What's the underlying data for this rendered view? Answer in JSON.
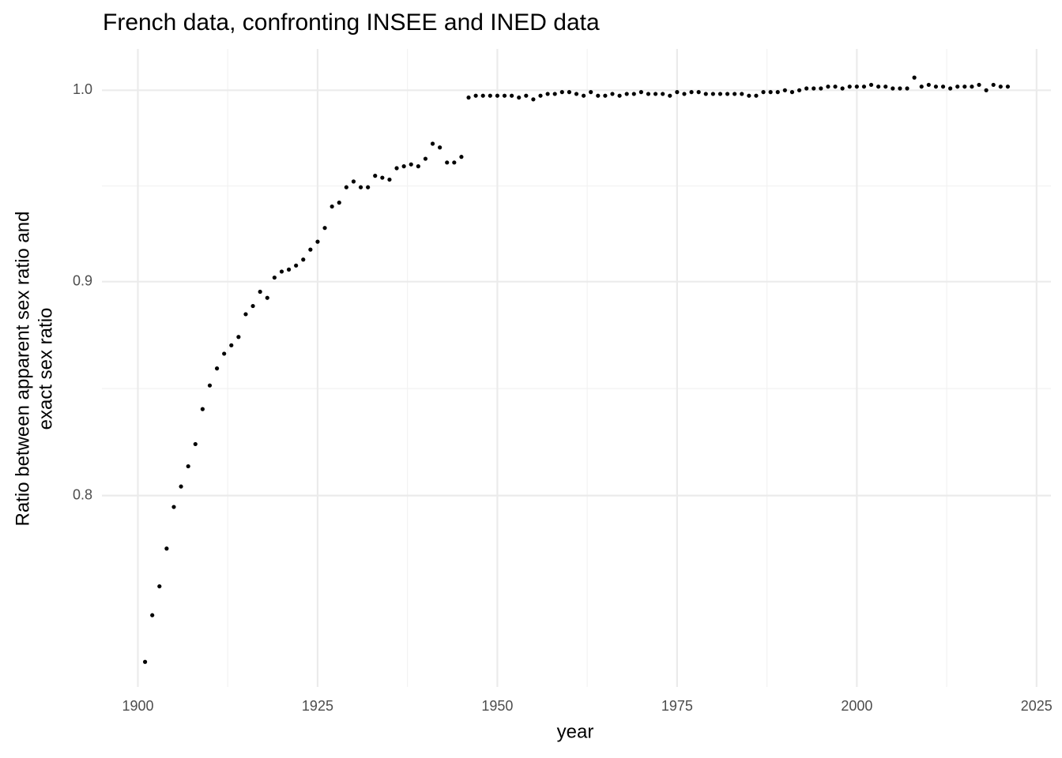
{
  "chart_data": {
    "type": "scatter",
    "title": "French data, confronting INSEE and INED data",
    "xlabel": "year",
    "ylabel_lines": [
      "Ratio between apparent sex ratio and",
      "exact sex ratio"
    ],
    "color": "#000000",
    "log_y": true,
    "grid": true,
    "xlim": [
      1895,
      2027
    ],
    "ylim": [
      0.72,
      1.023
    ],
    "xticks": [
      1900,
      1925,
      1950,
      1975,
      2000,
      2025
    ],
    "yticks": [
      0.8,
      0.9,
      {
        "value": 1.0,
        "label": "1.0"
      }
    ],
    "x": [
      1901,
      1902,
      1903,
      1904,
      1905,
      1906,
      1907,
      1908,
      1909,
      1910,
      1911,
      1912,
      1913,
      1914,
      1915,
      1916,
      1917,
      1918,
      1919,
      1920,
      1921,
      1922,
      1923,
      1924,
      1925,
      1926,
      1927,
      1928,
      1929,
      1930,
      1931,
      1932,
      1933,
      1934,
      1935,
      1936,
      1937,
      1938,
      1939,
      1940,
      1941,
      1942,
      1943,
      1944,
      1945,
      1946,
      1947,
      1948,
      1949,
      1950,
      1951,
      1952,
      1953,
      1954,
      1955,
      1956,
      1957,
      1958,
      1959,
      1960,
      1961,
      1962,
      1963,
      1964,
      1965,
      1966,
      1967,
      1968,
      1969,
      1970,
      1971,
      1972,
      1973,
      1974,
      1975,
      1976,
      1977,
      1978,
      1979,
      1980,
      1981,
      1982,
      1983,
      1984,
      1985,
      1986,
      1987,
      1988,
      1989,
      1990,
      1991,
      1992,
      1993,
      1994,
      1995,
      1996,
      1997,
      1998,
      1999,
      2000,
      2001,
      2002,
      2003,
      2004,
      2005,
      2006,
      2007,
      2008,
      2009,
      2010,
      2011,
      2012,
      2013,
      2014,
      2015,
      2016,
      2017,
      2018,
      2019,
      2020,
      2021
    ],
    "values": [
      0.73,
      0.749,
      0.761,
      0.777,
      0.795,
      0.804,
      0.813,
      0.823,
      0.839,
      0.85,
      0.858,
      0.865,
      0.869,
      0.873,
      0.884,
      0.888,
      0.895,
      0.892,
      0.902,
      0.905,
      0.906,
      0.908,
      0.911,
      0.916,
      0.92,
      0.927,
      0.938,
      0.94,
      0.948,
      0.951,
      0.948,
      0.948,
      0.954,
      0.953,
      0.952,
      0.958,
      0.959,
      0.96,
      0.959,
      0.963,
      0.971,
      0.969,
      0.961,
      0.961,
      0.964,
      0.996,
      0.997,
      0.997,
      0.997,
      0.997,
      0.997,
      0.997,
      0.996,
      0.997,
      0.995,
      0.997,
      0.998,
      0.998,
      0.999,
      0.999,
      0.998,
      0.997,
      0.999,
      0.997,
      0.997,
      0.998,
      0.997,
      0.998,
      0.998,
      0.999,
      0.998,
      0.998,
      0.998,
      0.997,
      0.999,
      0.998,
      0.999,
      0.999,
      0.998,
      0.998,
      0.998,
      0.998,
      0.998,
      0.998,
      0.997,
      0.997,
      0.999,
      0.999,
      0.999,
      1.0,
      0.999,
      1.0,
      1.001,
      1.001,
      1.001,
      1.002,
      1.002,
      1.001,
      1.002,
      1.002,
      1.002,
      1.003,
      1.002,
      1.002,
      1.001,
      1.001,
      1.001,
      1.007,
      1.002,
      1.003,
      1.002,
      1.002,
      1.001,
      1.002,
      1.002,
      1.002,
      1.003,
      1.0,
      1.003,
      1.002,
      1.002
    ]
  }
}
